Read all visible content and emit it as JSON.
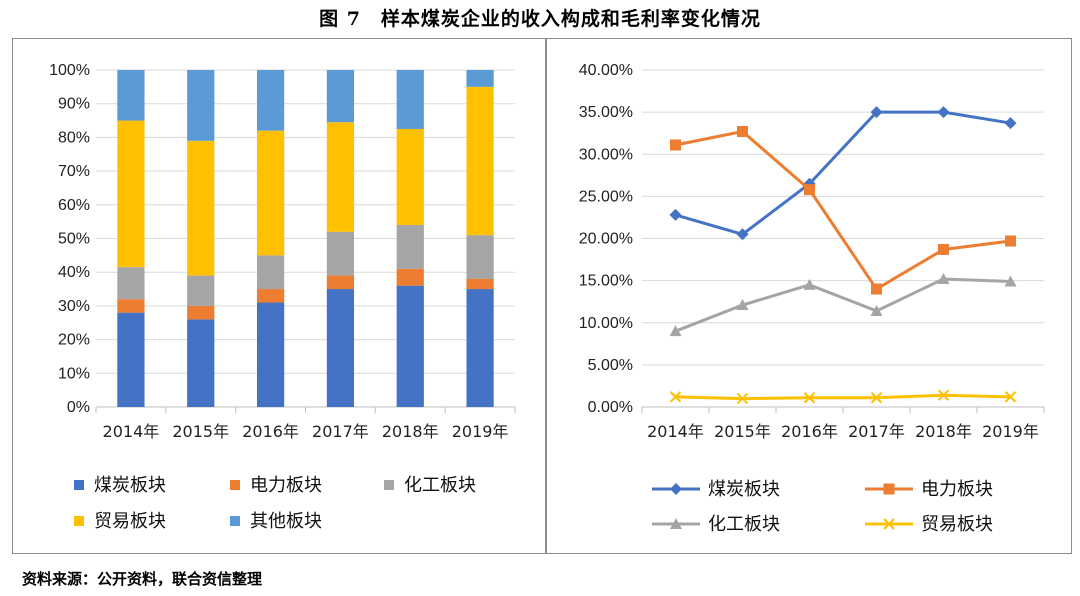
{
  "figure": {
    "title": "图 7　样本煤炭企业的收入构成和毛利率变化情况",
    "source": "资料来源：公开资料，联合资信整理"
  },
  "chart_data": [
    {
      "type": "bar",
      "stacked": true,
      "categories": [
        "2014年",
        "2015年",
        "2016年",
        "2017年",
        "2018年",
        "2019年"
      ],
      "ylim": [
        0,
        100
      ],
      "yticks": [
        "0%",
        "10%",
        "20%",
        "30%",
        "40%",
        "50%",
        "60%",
        "70%",
        "80%",
        "90%",
        "100%"
      ],
      "legend_position": "bottom",
      "series": [
        {
          "name": "煤炭板块",
          "color": "#4472C4",
          "values": [
            28,
            26,
            31,
            35,
            36,
            35
          ]
        },
        {
          "name": "电力板块",
          "color": "#ED7D31",
          "values": [
            4,
            4,
            4,
            4,
            5,
            3
          ]
        },
        {
          "name": "化工板块",
          "color": "#A5A5A5",
          "values": [
            9.5,
            9,
            10,
            13,
            13,
            13
          ]
        },
        {
          "name": "贸易板块",
          "color": "#FFC000",
          "values": [
            43.5,
            40,
            37,
            32.5,
            28.5,
            44
          ]
        },
        {
          "name": "其他板块",
          "color": "#5B9BD5",
          "values": [
            15,
            21,
            18,
            15.5,
            17.5,
            5
          ]
        }
      ]
    },
    {
      "type": "line",
      "categories": [
        "2014年",
        "2015年",
        "2016年",
        "2017年",
        "2018年",
        "2019年"
      ],
      "ylim": [
        0,
        40
      ],
      "yticks": [
        "0.00%",
        "5.00%",
        "10.00%",
        "15.00%",
        "20.00%",
        "25.00%",
        "30.00%",
        "35.00%",
        "40.00%"
      ],
      "legend_position": "bottom",
      "series": [
        {
          "name": "煤炭板块",
          "color": "#4472C4",
          "marker": "diamond",
          "values": [
            22.8,
            20.5,
            26.5,
            35.0,
            35.0,
            33.7
          ]
        },
        {
          "name": "电力板块",
          "color": "#ED7D31",
          "marker": "square",
          "values": [
            31.1,
            32.7,
            25.8,
            14.0,
            18.7,
            19.7
          ]
        },
        {
          "name": "化工板块",
          "color": "#A5A5A5",
          "marker": "triangle",
          "values": [
            9.0,
            12.1,
            14.5,
            11.4,
            15.2,
            14.9
          ]
        },
        {
          "name": "贸易板块",
          "color": "#FFC000",
          "marker": "x",
          "values": [
            1.2,
            1.0,
            1.1,
            1.1,
            1.4,
            1.2
          ]
        }
      ]
    }
  ]
}
